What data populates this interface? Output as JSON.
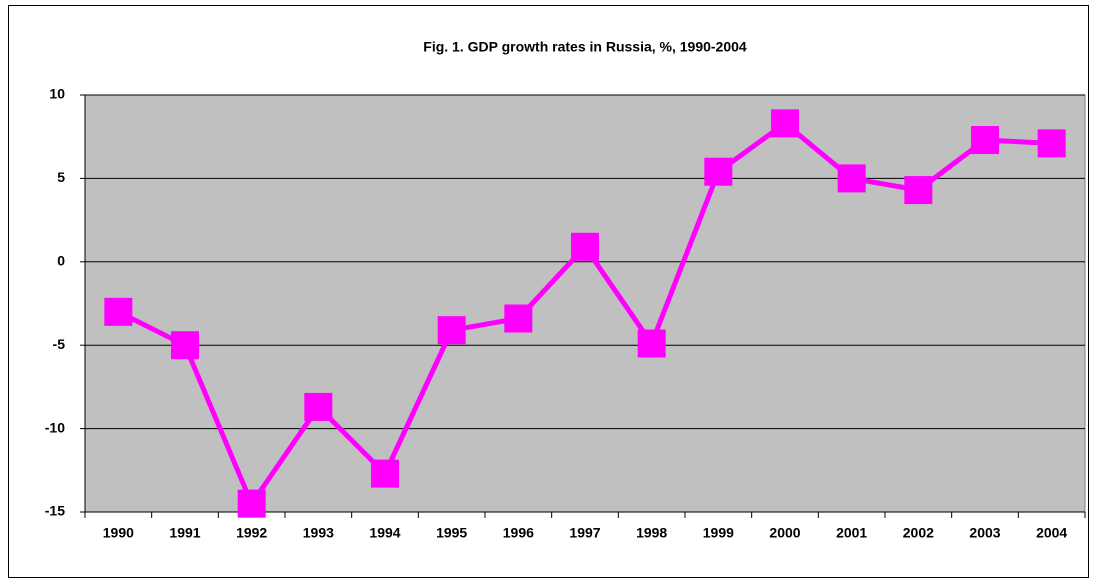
{
  "chart_data": {
    "type": "line",
    "title": "Fig. 1. GDP growth rates in Russia, %, 1990-2004",
    "categories": [
      "1990",
      "1991",
      "1992",
      "1993",
      "1994",
      "1995",
      "1996",
      "1997",
      "1998",
      "1999",
      "2000",
      "2001",
      "2002",
      "2003",
      "2004"
    ],
    "values": [
      -3.0,
      -5.0,
      -14.5,
      -8.7,
      -12.7,
      -4.1,
      -3.4,
      0.9,
      -4.9,
      5.4,
      8.3,
      5.0,
      4.3,
      7.3,
      7.1
    ],
    "color": "#ff00ff",
    "ylim": [
      -15,
      10
    ],
    "yticks": [
      -15,
      -10,
      -5,
      0,
      5,
      10
    ],
    "grid": true
  }
}
